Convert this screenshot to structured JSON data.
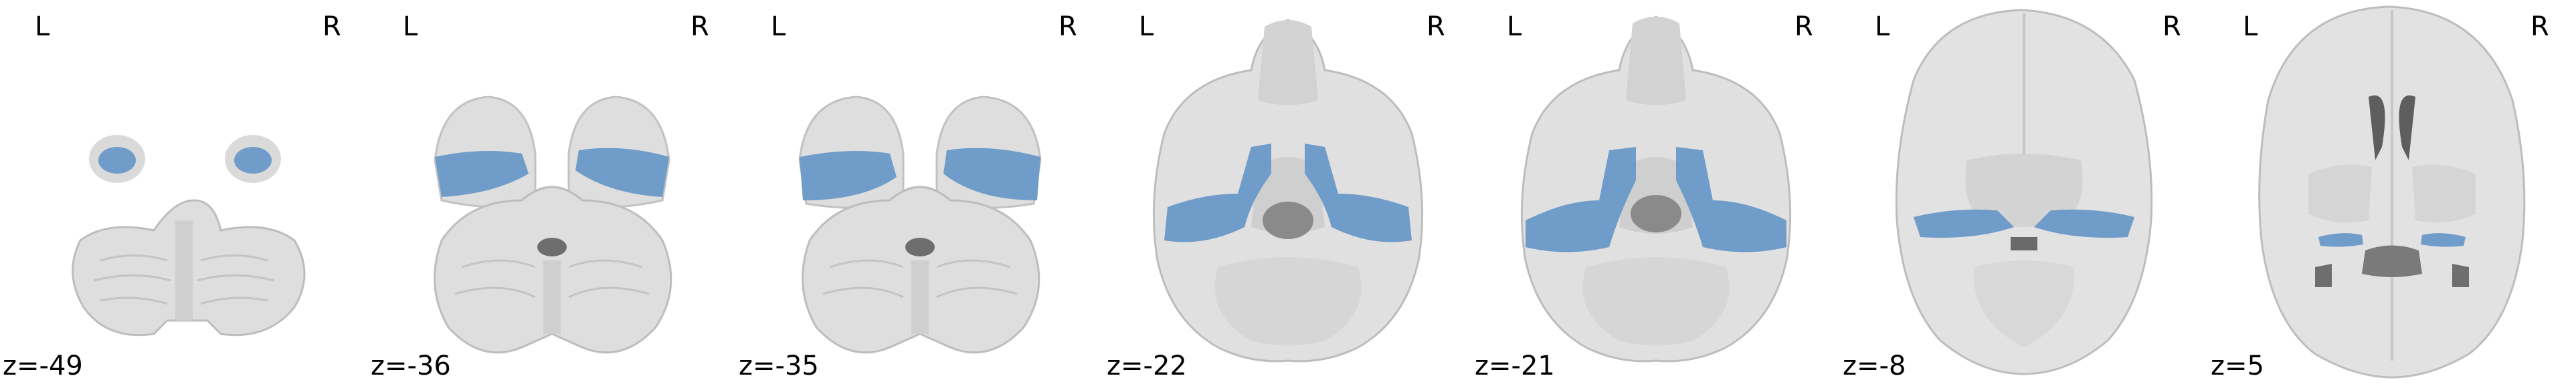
{
  "figure": {
    "panels": [
      {
        "left_label": "L",
        "right_label": "R",
        "coord_label": "z=-49"
      },
      {
        "left_label": "L",
        "right_label": "R",
        "coord_label": "z=-36"
      },
      {
        "left_label": "L",
        "right_label": "R",
        "coord_label": "z=-35"
      },
      {
        "left_label": "L",
        "right_label": "R",
        "coord_label": "z=-22"
      },
      {
        "left_label": "L",
        "right_label": "R",
        "coord_label": "z=-21"
      },
      {
        "left_label": "L",
        "right_label": "R",
        "coord_label": "z=-8"
      },
      {
        "left_label": "L",
        "right_label": "R",
        "coord_label": "z=5"
      }
    ],
    "colors": {
      "background": "#ffffff",
      "brain_light": "#e4e4e4",
      "brain_mid": "#c8c8c8",
      "brain_dark": "#8c8c8c",
      "overlay": "#6f9cc8"
    }
  }
}
